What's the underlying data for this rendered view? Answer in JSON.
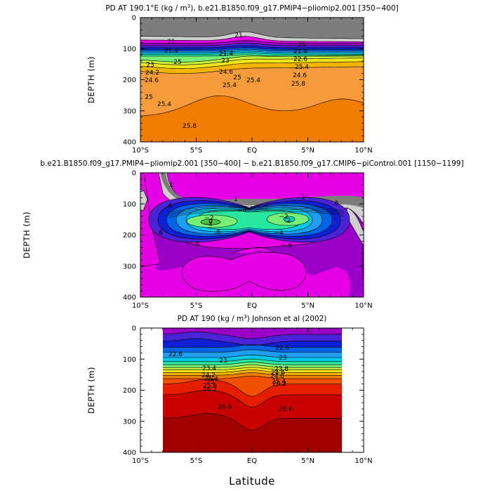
{
  "chart_data": [
    {
      "type": "contour",
      "title_parts": [
        "PD AT 190.1",
        "°",
        "E (kg / m",
        "3",
        "), b.e21.B1850.f09_g17.PMIP4−pliomip2.001 [350−400]"
      ],
      "xlabel": "",
      "ylabel": "DEPTH (m)",
      "xlim": [
        -10,
        10
      ],
      "ylim": [
        0,
        400
      ],
      "x_tick_labels": [
        "10°S",
        "5°S",
        "EQ",
        "5°N",
        "10°N"
      ],
      "y_tick_labels": [
        "0",
        "100",
        "200",
        "300",
        "400"
      ],
      "contour_labels": [
        "21",
        "21",
        "21",
        "21.4",
        "21.4",
        "21.4",
        "23",
        "23",
        "22.6",
        "24.2",
        "24.6",
        "24.6",
        "24.6",
        "25",
        "25",
        "25",
        "25.4",
        "25.4",
        "25.4",
        "25.4",
        "25.8",
        "25.8"
      ],
      "surface_value": 21,
      "deep_value": 25.8,
      "palette": [
        "#7d7d7d",
        "#d0d0d0",
        "#e600e6",
        "#9a00c8",
        "#4b23d6",
        "#0f1fd2",
        "#0064e6",
        "#1e9ef0",
        "#00c8e8",
        "#28e8a0",
        "#78f078",
        "#c8f03c",
        "#f0e61e",
        "#f5b400",
        "#f59b3c",
        "#f07d00"
      ]
    },
    {
      "type": "contour",
      "title_parts": [
        "b.e21.B1850.f09_g17.PMIP4−pliomip2.001 [350−400] − b.e21.B1850.f09_g17.CMIP6−piControl.001 [1150−1199]"
      ],
      "xlabel": "",
      "ylabel": "DEPTH (m)",
      "xlim": [
        -10,
        10
      ],
      "ylim": [
        0,
        400
      ],
      "x_tick_labels": [
        "10°S",
        "5°S",
        "EQ",
        "5°N",
        "10°N"
      ],
      "y_tick_labels": [
        "0",
        "100",
        "200",
        "300",
        "400"
      ],
      "contour_labels": [
        "1",
        "1",
        "1",
        ".6",
        ".6",
        "−.6",
        "−2",
        "−4",
        "−4",
        "−4",
        "−2",
        "−.6",
        "−.6",
        "0",
        ".2",
        ".6"
      ],
      "minimum_values": [
        -2.2,
        -2.0
      ],
      "palette": [
        "#7d7d7d",
        "#d0d0d0",
        "#e600e6",
        "#9a00c8",
        "#4b23d6",
        "#0f1fd2",
        "#0064e6",
        "#1e9ef0",
        "#00c8e8",
        "#28e8a0",
        "#78f078"
      ]
    },
    {
      "type": "contour",
      "title_parts": [
        "PD AT 190 (kg / m",
        "3",
        ") Johnson et al (2002)"
      ],
      "xlabel": "Latitude",
      "ylabel": "DEPTH (m)",
      "xlim": [
        -10,
        10
      ],
      "ylim": [
        0,
        400
      ],
      "data_xlim": [
        -8,
        8
      ],
      "x_tick_labels": [
        "10°S",
        "5°S",
        "EQ",
        "5°N",
        "10°N"
      ],
      "y_tick_labels": [
        "0",
        "100",
        "200",
        "300",
        "400"
      ],
      "contour_labels": [
        "22.6",
        "22.6",
        "23",
        "23",
        "23.4",
        "23.8",
        "24.2",
        "24.6",
        "25",
        "25.4",
        "25.8",
        "26.2",
        "26.2",
        "26.6",
        "26.6",
        "25.4",
        "24.6"
      ],
      "surface_value": 22.6,
      "deep_value": 26.6,
      "palette": [
        "#9a00c8",
        "#4b23d6",
        "#0f1fd2",
        "#0064e6",
        "#1e9ef0",
        "#00c8e8",
        "#28e8a0",
        "#78f078",
        "#c8f03c",
        "#f0e61e",
        "#f5b400",
        "#f07d00",
        "#f05000",
        "#e61e00",
        "#c80000",
        "#a00000"
      ]
    }
  ]
}
